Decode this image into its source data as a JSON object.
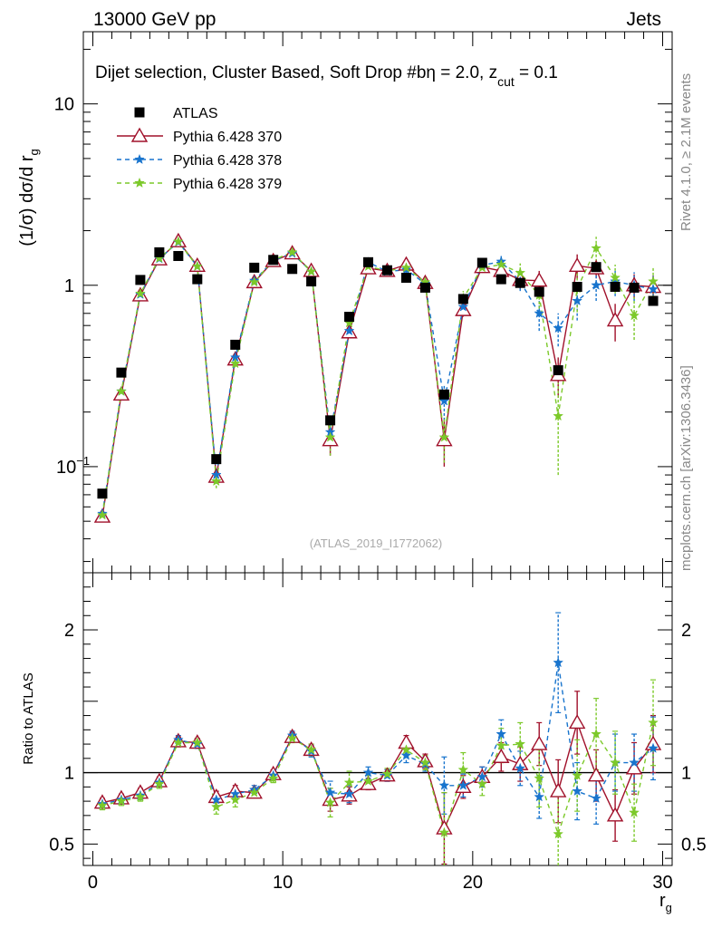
{
  "header": {
    "energy_label": "13000 GeV pp",
    "category_label": "Jets"
  },
  "side_labels": {
    "rivet": "Rivet 4.1.0, ≥ 2.1M events",
    "source": "mcplots.cern.ch [arXiv:1306.3436]"
  },
  "chart_data": [
    {
      "type": "scatter",
      "title": "Dijet selection, Cluster Based, Soft Drop #bη = 2.0, z_cut = 0.1",
      "title_main": "Dijet selection, Cluster Based, Soft Drop #bη = 2.0, z",
      "title_sub": "cut",
      "title_tail": " = 0.1",
      "ylabel": "(1/σ) dσ/d r",
      "ylabel_sub": "g",
      "yscale": "log",
      "ylim": [
        0.026,
        25
      ],
      "y_tick_labels": [
        {
          "value": 10,
          "label": "10"
        },
        {
          "value": 1,
          "label": "1"
        },
        {
          "value": 0.1,
          "label": "10",
          "sup": "−1"
        }
      ],
      "xlim": [
        -0.5,
        30.5
      ],
      "watermark": "(ATLAS_2019_I1772062)",
      "legend_position": "top-left",
      "x": [
        0.5,
        1.5,
        2.5,
        3.5,
        4.5,
        5.5,
        6.5,
        7.5,
        8.5,
        9.5,
        10.5,
        11.5,
        12.5,
        13.5,
        14.5,
        15.5,
        16.5,
        17.5,
        18.5,
        19.5,
        20.5,
        21.5,
        22.5,
        23.5,
        24.5,
        25.5,
        26.5,
        27.5,
        28.5,
        29.5
      ],
      "series": [
        {
          "name": "ATLAS",
          "color": "#000000",
          "marker": "square",
          "values": [
            0.071,
            0.33,
            1.07,
            1.52,
            1.45,
            1.08,
            0.11,
            0.47,
            1.25,
            1.38,
            1.23,
            1.05,
            0.18,
            0.67,
            1.34,
            1.21,
            1.1,
            0.97,
            0.25,
            0.84,
            1.33,
            1.08,
            1.03,
            0.92,
            0.34,
            0.98,
            1.26,
            0.98,
            0.97,
            0.82
          ]
        },
        {
          "name": "Pythia 6.428 370",
          "color": "#a0102a",
          "marker": "triangle-open",
          "line": "solid",
          "values": [
            0.053,
            0.25,
            0.88,
            1.39,
            1.75,
            1.28,
            0.088,
            0.39,
            1.04,
            1.36,
            1.5,
            1.2,
            0.14,
            0.55,
            1.24,
            1.2,
            1.3,
            1.03,
            0.14,
            0.73,
            1.26,
            1.2,
            1.07,
            1.06,
            0.32,
            1.28,
            1.24,
            0.64,
            1.0,
            0.98
          ],
          "errors": [
            0.003,
            0.008,
            0.02,
            0.03,
            0.04,
            0.03,
            0.007,
            0.015,
            0.03,
            0.04,
            0.05,
            0.04,
            0.025,
            0.04,
            0.04,
            0.04,
            0.05,
            0.05,
            0.04,
            0.06,
            0.07,
            0.1,
            0.12,
            0.14,
            0.08,
            0.2,
            0.15,
            0.15,
            0.15,
            0.15
          ]
        },
        {
          "name": "Pythia 6.428 378",
          "color": "#1874cd",
          "marker": "star",
          "line": "dashed",
          "values": [
            0.055,
            0.26,
            0.89,
            1.4,
            1.73,
            1.27,
            0.09,
            0.4,
            1.06,
            1.37,
            1.5,
            1.19,
            0.155,
            0.56,
            1.34,
            1.19,
            1.22,
            1.02,
            0.23,
            0.76,
            1.29,
            1.35,
            1.05,
            0.7,
            0.58,
            0.82,
            1.0,
            1.05,
            1.0,
            0.95
          ],
          "errors": [
            0.003,
            0.008,
            0.02,
            0.03,
            0.04,
            0.03,
            0.007,
            0.015,
            0.03,
            0.04,
            0.05,
            0.04,
            0.025,
            0.04,
            0.04,
            0.04,
            0.05,
            0.05,
            0.05,
            0.06,
            0.07,
            0.1,
            0.12,
            0.14,
            0.12,
            0.18,
            0.18,
            0.18,
            0.18,
            0.18
          ]
        },
        {
          "name": "Pythia 6.428 379",
          "color": "#7cc92a",
          "marker": "star",
          "line": "dashed",
          "values": [
            0.054,
            0.26,
            0.9,
            1.41,
            1.74,
            1.27,
            0.083,
            0.37,
            1.04,
            1.38,
            1.52,
            1.19,
            0.145,
            0.62,
            1.27,
            1.2,
            1.25,
            1.04,
            0.145,
            0.85,
            1.25,
            1.3,
            1.17,
            0.88,
            0.19,
            0.96,
            1.6,
            1.1,
            0.68,
            1.05
          ],
          "errors": [
            0.003,
            0.008,
            0.02,
            0.03,
            0.04,
            0.03,
            0.007,
            0.015,
            0.03,
            0.04,
            0.05,
            0.04,
            0.03,
            0.05,
            0.04,
            0.04,
            0.05,
            0.05,
            0.04,
            0.08,
            0.08,
            0.12,
            0.15,
            0.18,
            0.1,
            0.25,
            0.25,
            0.2,
            0.18,
            0.2
          ]
        }
      ]
    },
    {
      "type": "scatter",
      "ylabel": "Ratio to ATLAS",
      "xlabel": "r",
      "xlabel_sub": "g",
      "ylim": [
        0.35,
        2.4
      ],
      "y_tick_labels": [
        {
          "value": 2,
          "label": "2"
        },
        {
          "value": 1,
          "label": "1"
        },
        {
          "value": 0.5,
          "label": "0.5"
        }
      ],
      "xlim": [
        -0.5,
        30.5
      ],
      "x_tick_labels": [
        {
          "value": 0,
          "label": "0"
        },
        {
          "value": 10,
          "label": "10"
        },
        {
          "value": 20,
          "label": "20"
        },
        {
          "value": 30,
          "label": "30"
        }
      ],
      "reference_line": 1,
      "x": [
        0.5,
        1.5,
        2.5,
        3.5,
        4.5,
        5.5,
        6.5,
        7.5,
        8.5,
        9.5,
        10.5,
        11.5,
        12.5,
        13.5,
        14.5,
        15.5,
        16.5,
        17.5,
        18.5,
        19.5,
        20.5,
        21.5,
        22.5,
        23.5,
        24.5,
        25.5,
        26.5,
        27.5,
        28.5,
        29.5
      ],
      "series": [
        {
          "name": "Pythia 6.428 370",
          "color": "#a0102a",
          "marker": "triangle-open",
          "line": "solid",
          "values": [
            0.79,
            0.82,
            0.86,
            0.94,
            1.22,
            1.21,
            0.83,
            0.87,
            0.86,
            0.99,
            1.25,
            1.16,
            0.81,
            0.84,
            0.92,
            0.98,
            1.21,
            1.08,
            0.61,
            0.9,
            0.97,
            1.11,
            1.06,
            1.2,
            0.87,
            1.35,
            0.98,
            0.7,
            1.03,
            1.2
          ],
          "errors": [
            0.03,
            0.03,
            0.03,
            0.03,
            0.03,
            0.03,
            0.04,
            0.04,
            0.03,
            0.03,
            0.03,
            0.04,
            0.08,
            0.06,
            0.04,
            0.04,
            0.05,
            0.05,
            0.25,
            0.08,
            0.07,
            0.1,
            0.12,
            0.15,
            0.22,
            0.22,
            0.18,
            0.18,
            0.18,
            0.2
          ]
        },
        {
          "name": "Pythia 6.428 378",
          "color": "#1874cd",
          "marker": "star",
          "line": "dashed",
          "values": [
            0.78,
            0.81,
            0.84,
            0.93,
            1.23,
            1.2,
            0.81,
            0.85,
            0.88,
            0.98,
            1.26,
            1.15,
            0.86,
            0.85,
            1.0,
            0.98,
            1.12,
            1.06,
            0.91,
            0.91,
            0.97,
            1.27,
            1.03,
            0.83,
            1.77,
            0.87,
            0.82,
            1.07,
            1.07,
            1.17
          ],
          "errors": [
            0.03,
            0.03,
            0.03,
            0.03,
            0.03,
            0.03,
            0.04,
            0.04,
            0.03,
            0.03,
            0.03,
            0.04,
            0.08,
            0.06,
            0.04,
            0.04,
            0.05,
            0.05,
            0.2,
            0.08,
            0.07,
            0.1,
            0.12,
            0.15,
            0.35,
            0.2,
            0.18,
            0.2,
            0.2,
            0.22
          ]
        },
        {
          "name": "Pythia 6.428 379",
          "color": "#7cc92a",
          "marker": "star",
          "line": "dashed",
          "values": [
            0.77,
            0.8,
            0.83,
            0.92,
            1.21,
            1.21,
            0.76,
            0.81,
            0.86,
            0.96,
            1.24,
            1.16,
            0.79,
            0.93,
            0.94,
            0.99,
            1.16,
            1.07,
            0.58,
            1.02,
            0.92,
            1.19,
            1.2,
            0.96,
            0.57,
            0.98,
            1.27,
            1.07,
            0.72,
            1.35
          ],
          "errors": [
            0.03,
            0.03,
            0.03,
            0.03,
            0.03,
            0.03,
            0.05,
            0.05,
            0.03,
            0.03,
            0.03,
            0.04,
            0.1,
            0.08,
            0.04,
            0.04,
            0.05,
            0.05,
            0.28,
            0.12,
            0.08,
            0.12,
            0.15,
            0.2,
            0.3,
            0.25,
            0.25,
            0.22,
            0.2,
            0.3
          ]
        }
      ]
    }
  ]
}
